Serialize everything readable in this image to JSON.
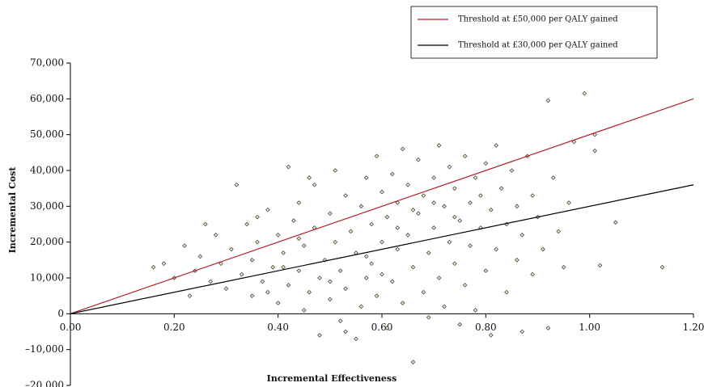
{
  "chart_data": {
    "type": "scatter",
    "xlabel": "Incremental Effectiveness",
    "ylabel": "Incremental Cost",
    "xlim": [
      0,
      1.2
    ],
    "ylim": [
      -20000,
      70000
    ],
    "xticks": [
      {
        "value": 0,
        "label": "0.00"
      },
      {
        "value": 0.2,
        "label": "0.20"
      },
      {
        "value": 0.4,
        "label": "0.40"
      },
      {
        "value": 0.6,
        "label": "0.60"
      },
      {
        "value": 0.8,
        "label": "0.80"
      },
      {
        "value": 1.0,
        "label": "1.00"
      },
      {
        "value": 1.2,
        "label": "1.20"
      }
    ],
    "yticks": [
      {
        "value": -20000,
        "label": "–20,000"
      },
      {
        "value": -10000,
        "label": "–10,000"
      },
      0,
      {
        "value": 10000,
        "label": "10,000"
      },
      {
        "value": 20000,
        "label": "20,000"
      },
      {
        "value": 30000,
        "label": "30,000"
      },
      {
        "value": 40000,
        "label": "40,000"
      },
      {
        "value": 50000,
        "label": "50,000"
      },
      {
        "value": 60000,
        "label": "60,000"
      },
      {
        "value": 70000,
        "label": "70,000"
      }
    ],
    "legend": "upper right",
    "series": [
      {
        "type": "scatter",
        "color": "#f2efc0",
        "edgecolor": "#333333",
        "x": [
          0.18,
          0.2,
          0.22,
          0.24,
          0.25,
          0.27,
          0.28,
          0.29,
          0.3,
          0.31,
          0.32,
          0.33,
          0.34,
          0.35,
          0.35,
          0.36,
          0.37,
          0.38,
          0.39,
          0.4,
          0.4,
          0.41,
          0.42,
          0.42,
          0.43,
          0.44,
          0.44,
          0.45,
          0.45,
          0.46,
          0.47,
          0.47,
          0.48,
          0.48,
          0.49,
          0.5,
          0.5,
          0.51,
          0.51,
          0.52,
          0.52,
          0.53,
          0.53,
          0.54,
          0.55,
          0.55,
          0.56,
          0.56,
          0.57,
          0.57,
          0.58,
          0.58,
          0.59,
          0.59,
          0.6,
          0.6,
          0.61,
          0.61,
          0.62,
          0.62,
          0.63,
          0.63,
          0.64,
          0.64,
          0.65,
          0.65,
          0.66,
          0.66,
          0.67,
          0.67,
          0.68,
          0.68,
          0.69,
          0.69,
          0.7,
          0.7,
          0.71,
          0.71,
          0.72,
          0.72,
          0.73,
          0.73,
          0.74,
          0.74,
          0.75,
          0.75,
          0.76,
          0.76,
          0.77,
          0.77,
          0.78,
          0.78,
          0.79,
          0.8,
          0.8,
          0.81,
          0.81,
          0.82,
          0.82,
          0.83,
          0.84,
          0.84,
          0.85,
          0.86,
          0.86,
          0.87,
          0.87,
          0.88,
          0.89,
          0.89,
          0.9,
          0.91,
          0.92,
          0.92,
          0.93,
          0.94,
          0.95,
          0.96,
          0.97,
          0.99,
          1.01,
          1.01,
          1.02,
          1.05,
          1.14,
          0.16,
          0.23,
          0.26,
          0.46,
          0.53,
          0.6,
          0.63,
          0.57,
          0.5,
          0.44,
          0.41,
          0.38,
          0.36,
          0.66,
          0.7,
          0.74,
          0.79
        ],
        "values": [
          14000,
          10000,
          19000,
          12000,
          16000,
          9000,
          22000,
          14000,
          7000,
          18000,
          36000,
          11000,
          25000,
          15000,
          5000,
          20000,
          9000,
          29000,
          13000,
          22000,
          3000,
          17000,
          41000,
          8000,
          26000,
          12000,
          31000,
          1000,
          19000,
          6000,
          24000,
          36000,
          10000,
          -6000,
          15000,
          28000,
          4000,
          40000,
          20000,
          -2000,
          12000,
          33000,
          7000,
          23000,
          17000,
          -7000,
          30000,
          2000,
          38000,
          10000,
          25000,
          14000,
          44000,
          5000,
          20000,
          34000,
          -4000,
          27000,
          9000,
          39000,
          18000,
          31000,
          46000,
          3000,
          22000,
          36000,
          -13500,
          13000,
          28000,
          43000,
          6000,
          33000,
          17000,
          -1000,
          38000,
          24000,
          10000,
          47000,
          30000,
          2000,
          20000,
          41000,
          14000,
          35000,
          -3000,
          26000,
          44000,
          8000,
          31000,
          19000,
          38000,
          1000,
          24000,
          42000,
          12000,
          29000,
          -6000,
          47000,
          18000,
          35000,
          6000,
          25000,
          40000,
          15000,
          30000,
          -5000,
          22000,
          44000,
          11000,
          33000,
          27000,
          18000,
          59500,
          -4000,
          38000,
          23000,
          13000,
          31000,
          48000,
          61500,
          50000,
          45500,
          13500,
          25500,
          13000,
          13000,
          5000,
          25000,
          38000,
          -5000,
          11000,
          24000,
          16000,
          9000,
          21000,
          13000,
          6000,
          27000,
          29000,
          31000,
          27000,
          33000
        ]
      },
      {
        "type": "line",
        "name": "Threshold at £50,000 per QALY gained",
        "color": "#b0202a",
        "x": [
          0,
          1.2
        ],
        "values": [
          0,
          60000
        ]
      },
      {
        "type": "line",
        "name": "Threshold at  £30,000 per QALY gained",
        "color": "#000000",
        "x": [
          0,
          1.2
        ],
        "values": [
          0,
          36000
        ]
      }
    ]
  }
}
